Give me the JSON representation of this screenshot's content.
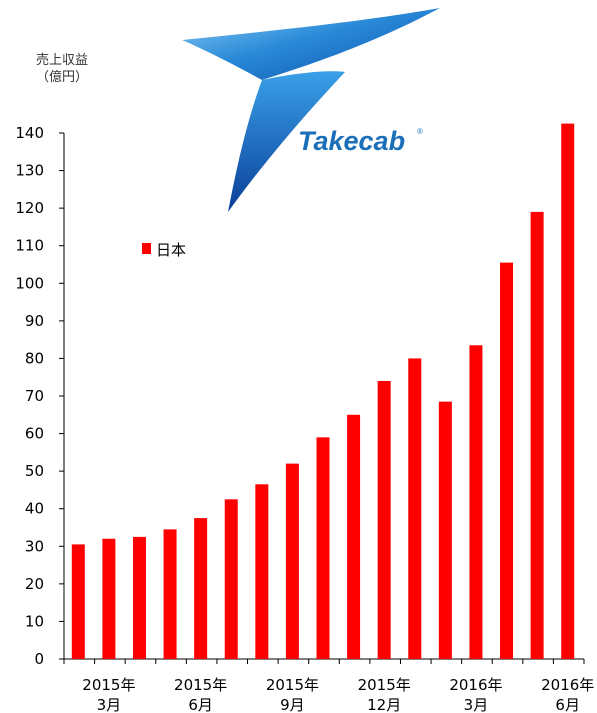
{
  "chart_data": {
    "type": "bar",
    "ylabel_line1": "売上収益",
    "ylabel_line2": "（億円）",
    "ylim": [
      0,
      140
    ],
    "yticks": [
      0,
      10,
      20,
      30,
      40,
      50,
      60,
      70,
      80,
      90,
      100,
      110,
      120,
      130,
      140
    ],
    "legend": "日本",
    "legend_placement": "upper-left",
    "grid": false,
    "series": [
      {
        "name": "日本",
        "color": "#ff0000",
        "values": [
          30.5,
          32,
          32.5,
          34.5,
          37.5,
          42.5,
          46.5,
          52,
          59,
          65,
          74,
          80,
          68.5,
          83.5,
          105.5,
          119,
          142.5
        ]
      }
    ],
    "x_labels": [
      {
        "bar_index": 1,
        "line1": "2015年",
        "line2": "3月"
      },
      {
        "bar_index": 4,
        "line1": "2015年",
        "line2": "6月"
      },
      {
        "bar_index": 7,
        "line1": "2015年",
        "line2": "9月"
      },
      {
        "bar_index": 10,
        "line1": "2015年",
        "line2": "12月"
      },
      {
        "bar_index": 13,
        "line1": "2016年",
        "line2": "3月"
      },
      {
        "bar_index": 16,
        "line1": "2016年",
        "line2": "6月"
      }
    ]
  },
  "logo": {
    "text": "Takecab",
    "mark": "®",
    "color": "#1a6fb8"
  }
}
